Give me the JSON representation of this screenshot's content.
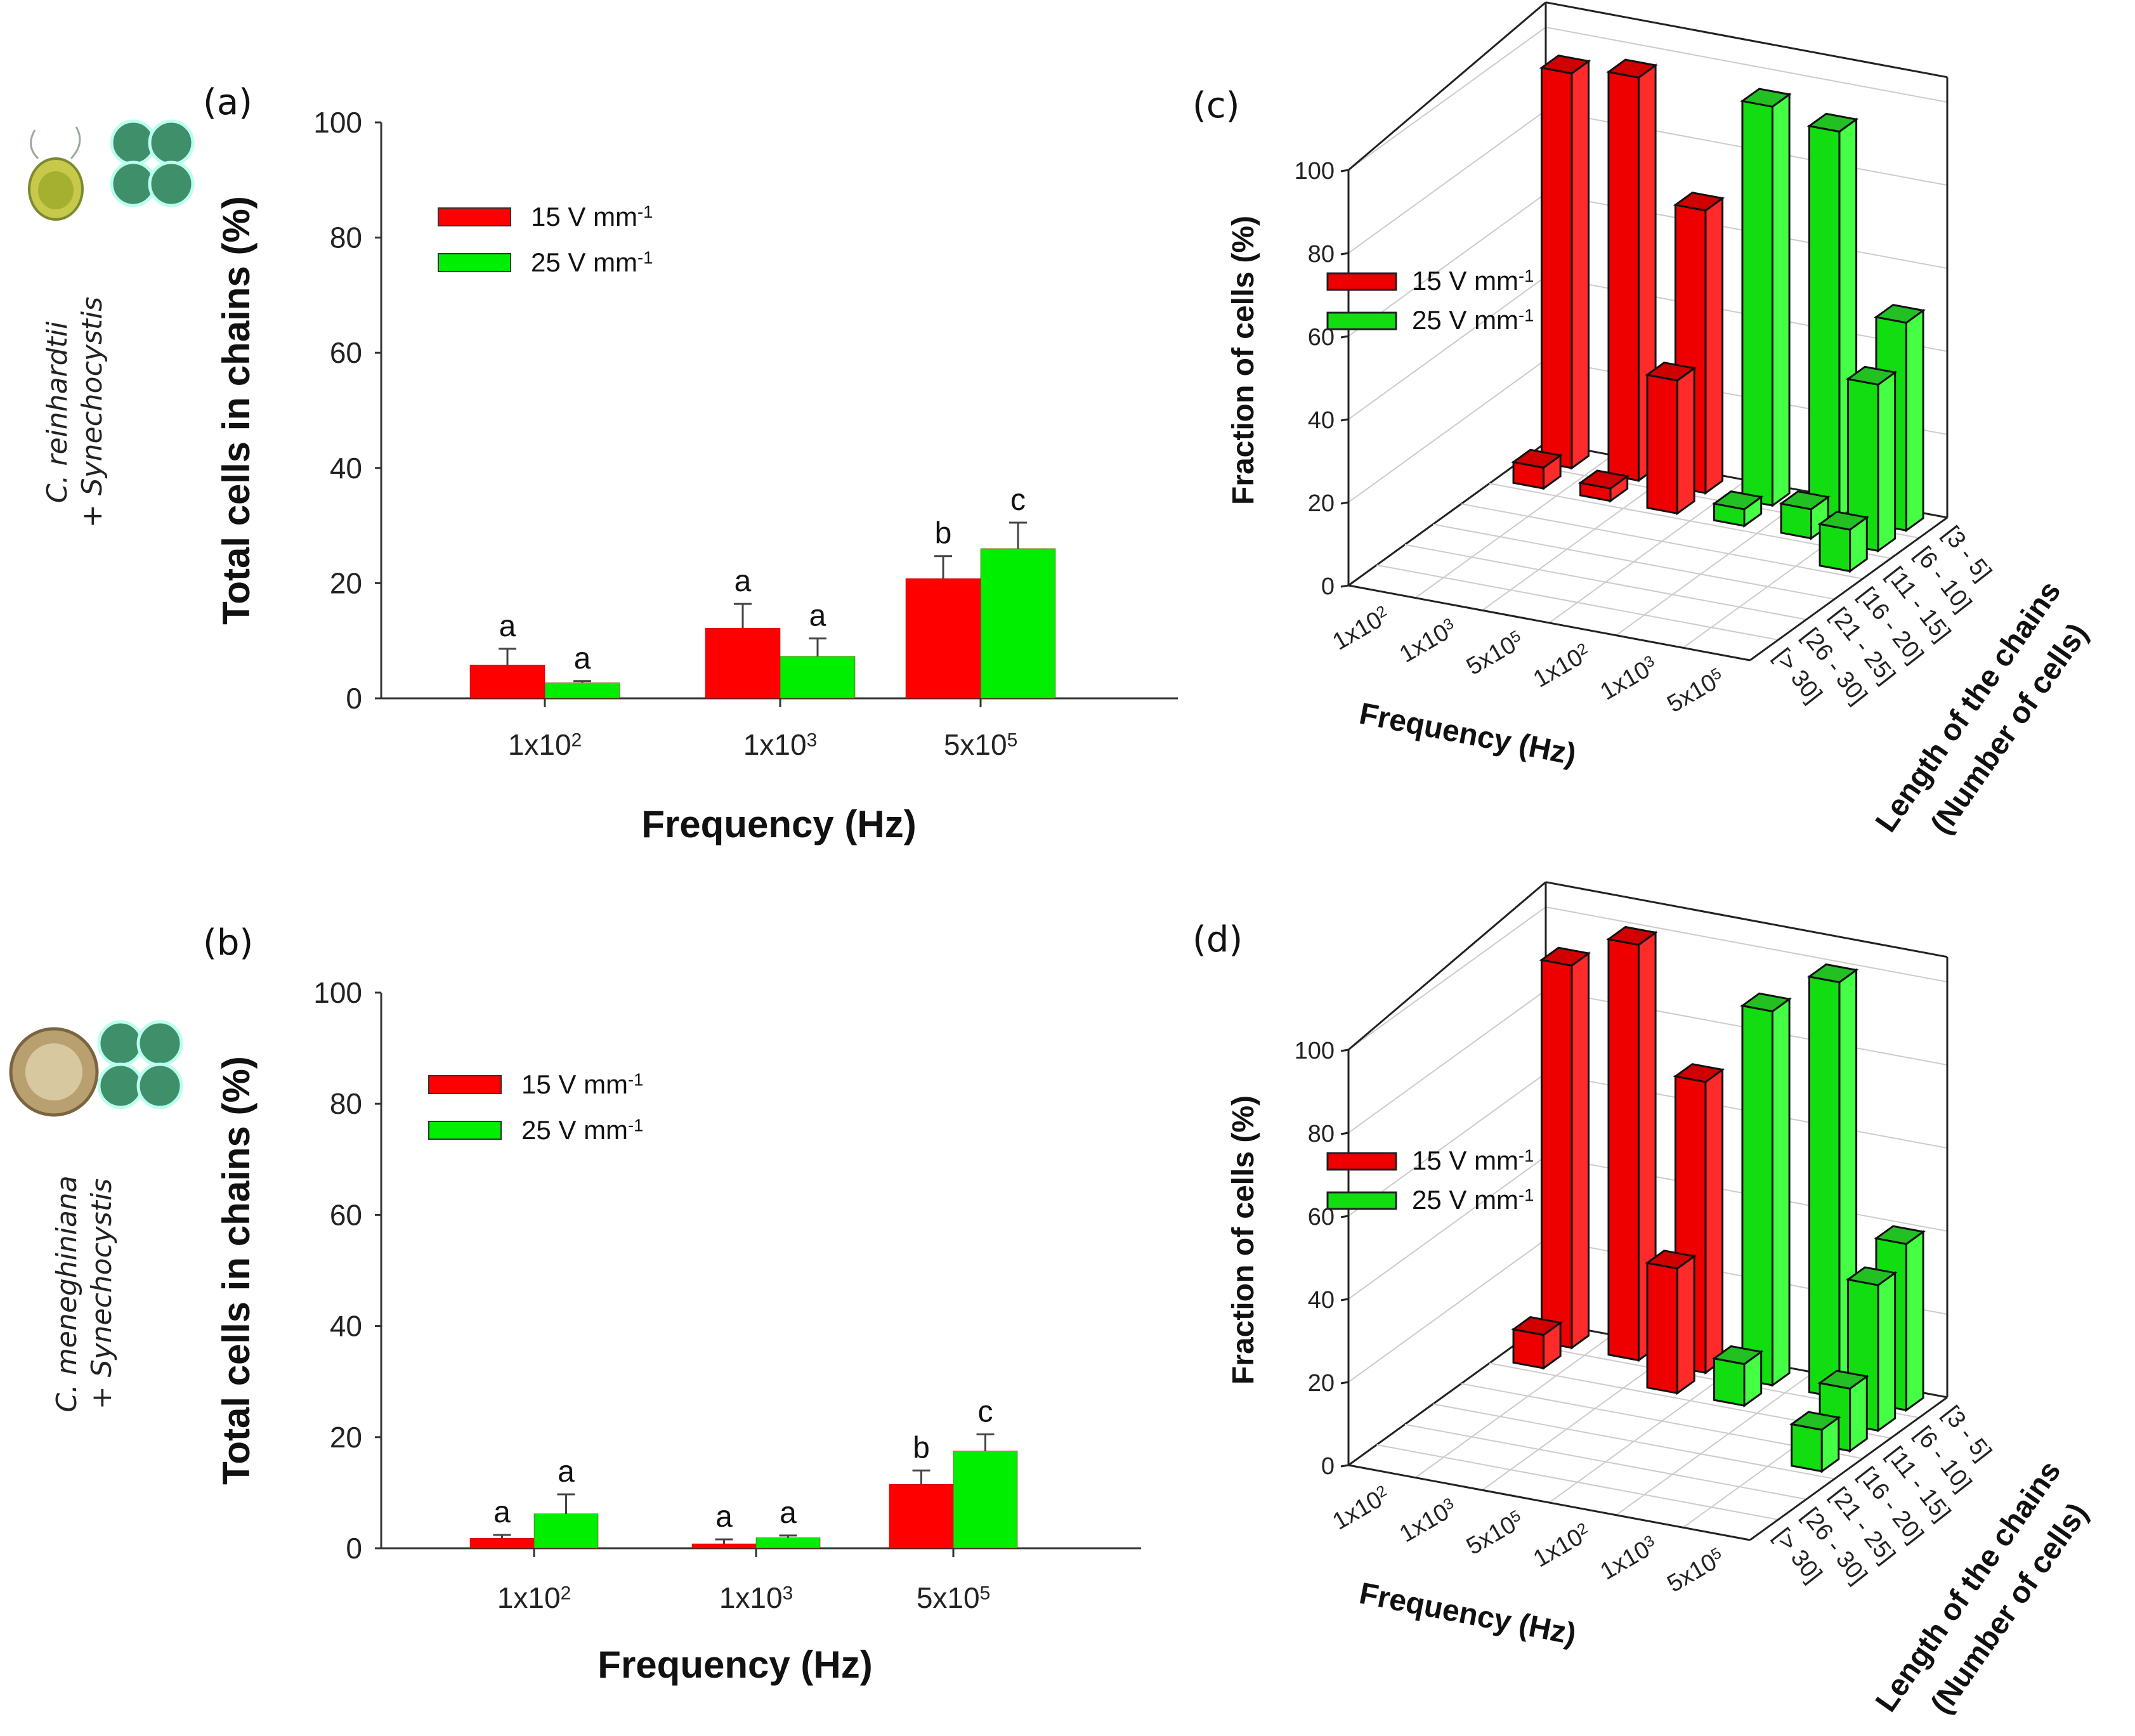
{
  "colors": {
    "red": "#ff0000",
    "green": "#00ee00"
  },
  "side_labels": {
    "top": [
      "C. reinhardtii",
      "+ Synechocystis"
    ],
    "bottom": [
      "C. meneghiniana",
      "+ Synechocystis"
    ]
  },
  "chart_data": [
    {
      "panel": "(a)",
      "type": "bar",
      "ylabel": "Total cells in chains (%)",
      "xlabel": "Frequency (Hz)",
      "ylim": [
        0,
        100
      ],
      "yticks": [
        "0",
        "20",
        "40",
        "60",
        "80",
        "100"
      ],
      "categories": [
        {
          "base": "1x10",
          "exp": "2"
        },
        {
          "base": "1x10",
          "exp": "3"
        },
        {
          "base": "5x10",
          "exp": "5"
        }
      ],
      "legend": "top-left",
      "series": [
        {
          "name": "15 V mm",
          "name_sup": "-1",
          "color": "#ff0000",
          "values": [
            5.8,
            12.2,
            20.8
          ],
          "errors": [
            2.8,
            4.2,
            3.9
          ],
          "letters": [
            "a",
            "a",
            "b"
          ]
        },
        {
          "name": "25 V mm",
          "name_sup": "-1",
          "color": "#00ee00",
          "values": [
            2.7,
            7.3,
            26.0
          ],
          "errors": [
            0.3,
            3.1,
            4.5
          ],
          "letters": [
            "a",
            "a",
            "c"
          ]
        }
      ]
    },
    {
      "panel": "(b)",
      "type": "bar",
      "ylabel": "Total cells in chains (%)",
      "xlabel": "Frequency (Hz)",
      "ylim": [
        0,
        100
      ],
      "yticks": [
        "0",
        "20",
        "40",
        "60",
        "80",
        "100"
      ],
      "categories": [
        {
          "base": "1x10",
          "exp": "2"
        },
        {
          "base": "1x10",
          "exp": "3"
        },
        {
          "base": "5x10",
          "exp": "5"
        }
      ],
      "legend": "top-left",
      "series": [
        {
          "name": "15 V mm",
          "name_sup": "-1",
          "color": "#ff0000",
          "values": [
            1.8,
            0.8,
            11.5
          ],
          "errors": [
            0.6,
            0.8,
            2.5
          ],
          "letters": [
            "a",
            "a",
            "b"
          ]
        },
        {
          "name": "25 V mm",
          "name_sup": "-1",
          "color": "#00ee00",
          "values": [
            6.2,
            1.9,
            17.5
          ],
          "errors": [
            3.5,
            0.4,
            3.0
          ],
          "letters": [
            "a",
            "a",
            "c"
          ]
        }
      ]
    },
    {
      "panel": "(c)",
      "type": "bar3d",
      "zlabel": "Fraction of cells (%)",
      "xlabel": "Frequency (Hz)",
      "ylabel": [
        "Length of the chains",
        "(Number of cells)"
      ],
      "zlim": [
        0,
        100
      ],
      "zticks": [
        "0",
        "20",
        "40",
        "60",
        "80",
        "100"
      ],
      "x_categories": [
        {
          "base": "1x10",
          "exp": "2"
        },
        {
          "base": "1x10",
          "exp": "3"
        },
        {
          "base": "5x10",
          "exp": "5"
        },
        {
          "base": "1x10",
          "exp": "2"
        },
        {
          "base": "1x10",
          "exp": "3"
        },
        {
          "base": "5x10",
          "exp": "5"
        }
      ],
      "y_categories": [
        "[3 - 5]",
        "[6 - 10]",
        "[11 - 15]",
        "[16 - 20]",
        "[21 - 25]",
        "[26 - 30]",
        "[> 30]"
      ],
      "legend": [
        "15 V mm",
        "25 V mm"
      ],
      "legend_sup": "-1",
      "series_of_column": [
        0,
        0,
        0,
        1,
        1,
        1
      ],
      "values": [
        [
          95,
          5,
          0,
          0,
          0,
          0,
          0
        ],
        [
          97,
          3,
          0,
          0,
          0,
          0,
          0
        ],
        [
          68,
          32,
          0,
          0,
          0,
          0,
          0
        ],
        [
          96,
          4,
          0,
          0,
          0,
          0,
          0
        ],
        [
          93,
          7,
          0,
          0,
          0,
          0,
          0
        ],
        [
          50,
          40,
          10,
          0,
          0,
          0,
          0
        ]
      ]
    },
    {
      "panel": "(d)",
      "type": "bar3d",
      "zlabel": "Fraction of cells (%)",
      "xlabel": "Frequency (Hz)",
      "ylabel": [
        "Length of the chains",
        "(Number of cells)"
      ],
      "zlim": [
        0,
        100
      ],
      "zticks": [
        "0",
        "20",
        "40",
        "60",
        "80",
        "100"
      ],
      "x_categories": [
        {
          "base": "1x10",
          "exp": "2"
        },
        {
          "base": "1x10",
          "exp": "3"
        },
        {
          "base": "5x10",
          "exp": "5"
        },
        {
          "base": "1x10",
          "exp": "2"
        },
        {
          "base": "1x10",
          "exp": "3"
        },
        {
          "base": "5x10",
          "exp": "5"
        }
      ],
      "y_categories": [
        "[3 - 5]",
        "[6 - 10]",
        "[11 - 15]",
        "[16 - 20]",
        "[21 - 25]",
        "[26 - 30]",
        "[> 30]"
      ],
      "legend": [
        "15 V mm",
        "25 V mm"
      ],
      "legend_sup": "-1",
      "series_of_column": [
        0,
        0,
        0,
        1,
        1,
        1
      ],
      "values": [
        [
          92,
          8,
          0,
          0,
          0,
          0,
          0
        ],
        [
          100,
          0,
          0,
          0,
          0,
          0,
          0
        ],
        [
          70,
          30,
          0,
          0,
          0,
          0,
          0
        ],
        [
          90,
          10,
          0,
          0,
          0,
          0,
          0
        ],
        [
          100,
          0,
          0,
          0,
          0,
          0,
          0
        ],
        [
          40,
          35,
          15,
          10,
          0,
          0,
          0
        ]
      ]
    }
  ]
}
